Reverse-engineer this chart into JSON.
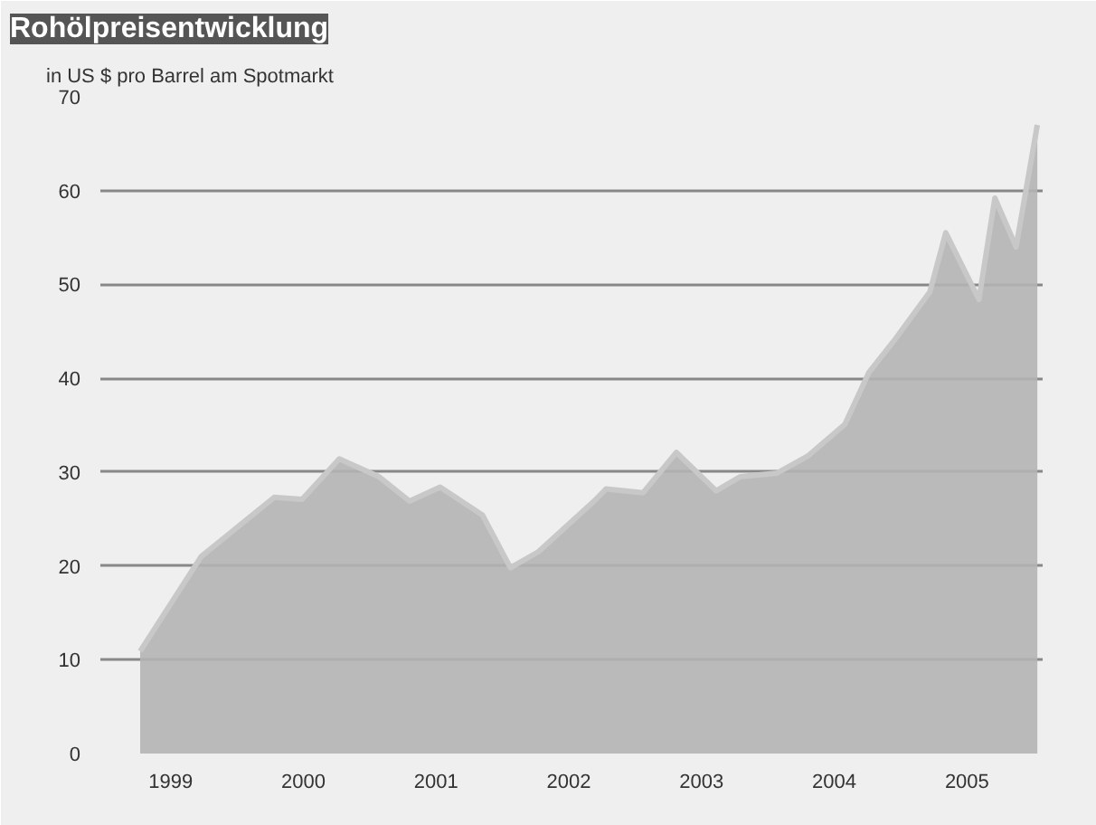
{
  "chart_data": {
    "type": "area",
    "title": "Rohölpreisentwicklung",
    "ylabel": "in US $ pro Barrel am Spotmarkt",
    "x": [
      1998.77,
      1999.23,
      1999.78,
      1999.99,
      2000.27,
      2000.57,
      2000.8,
      2001.03,
      2001.35,
      2001.56,
      2001.77,
      2002.19,
      2002.28,
      2002.56,
      2002.81,
      2003.11,
      2003.29,
      2003.57,
      2003.8,
      2004.08,
      2004.26,
      2004.45,
      2004.72,
      2004.84,
      2005.09,
      2005.21,
      2005.37,
      2005.53
    ],
    "series": [
      {
        "color": "#b4b4b4",
        "values": [
          10.9,
          21.0,
          27.3,
          27.1,
          31.4,
          29.5,
          26.9,
          28.4,
          25.4,
          19.8,
          21.5,
          26.9,
          28.2,
          27.8,
          32.1,
          28.0,
          29.5,
          29.9,
          31.7,
          35.1,
          40.6,
          44.0,
          49.2,
          55.5,
          48.4,
          59.2,
          54.0,
          67.0
        ]
      }
    ],
    "xlim": [
      1998.47,
      2005.57
    ],
    "ylim": [
      0,
      70
    ],
    "xticks": [
      1999,
      2000,
      2001,
      2002,
      2003,
      2004,
      2005
    ],
    "yticks": [
      0,
      10,
      20,
      30,
      40,
      50,
      60,
      70
    ],
    "grid": "y"
  }
}
